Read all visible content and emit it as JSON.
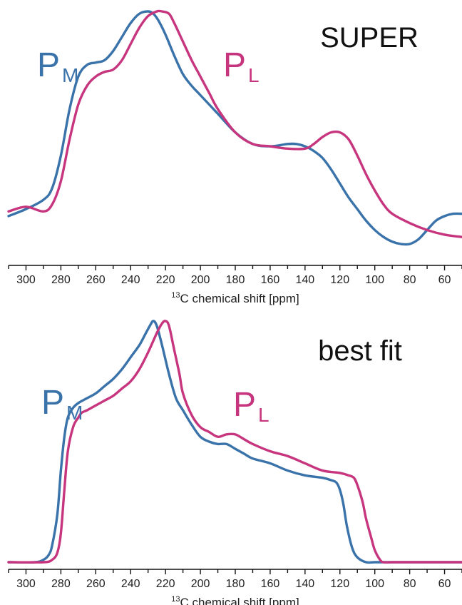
{
  "colors": {
    "pm": "#3a72aa",
    "pl": "#c6357e"
  },
  "chart_data": [
    {
      "type": "line",
      "annotation": "SUPER",
      "xlabel": {
        "sup": "13",
        "text": "C chemical shift [ppm]"
      },
      "xlim": [
        310,
        50
      ],
      "xticks": [
        300,
        280,
        260,
        240,
        220,
        200,
        180,
        160,
        140,
        120,
        100,
        80,
        60
      ],
      "ylim": [
        0,
        1
      ],
      "series": [
        {
          "label_main": "P",
          "label_sub": "M",
          "color": "#3a72aa",
          "x": [
            310,
            300,
            290,
            285,
            280,
            275,
            270,
            265,
            260,
            255,
            250,
            245,
            240,
            235,
            230,
            227,
            224,
            220,
            215,
            210,
            205,
            200,
            190,
            180,
            170,
            160,
            150,
            145,
            140,
            135,
            130,
            125,
            120,
            115,
            110,
            105,
            100,
            95,
            90,
            85,
            80,
            75,
            70,
            65,
            60,
            55,
            50
          ],
          "y": [
            0.12,
            0.15,
            0.19,
            0.24,
            0.38,
            0.58,
            0.72,
            0.77,
            0.78,
            0.79,
            0.83,
            0.89,
            0.95,
            0.99,
            1.0,
            0.99,
            0.96,
            0.9,
            0.81,
            0.73,
            0.68,
            0.64,
            0.56,
            0.48,
            0.43,
            0.42,
            0.43,
            0.43,
            0.42,
            0.4,
            0.37,
            0.32,
            0.26,
            0.2,
            0.15,
            0.1,
            0.06,
            0.03,
            0.01,
            0.0,
            0.0,
            0.02,
            0.06,
            0.1,
            0.12,
            0.13,
            0.13
          ]
        },
        {
          "label_main": "P",
          "label_sub": "L",
          "color": "#c6357e",
          "x": [
            310,
            300,
            290,
            285,
            280,
            275,
            270,
            265,
            260,
            255,
            250,
            245,
            240,
            235,
            230,
            225,
            222,
            218,
            215,
            210,
            205,
            200,
            195,
            190,
            180,
            170,
            160,
            150,
            140,
            135,
            130,
            125,
            120,
            115,
            110,
            105,
            100,
            95,
            90,
            80,
            70,
            60,
            50
          ],
          "y": [
            0.14,
            0.16,
            0.14,
            0.17,
            0.27,
            0.45,
            0.6,
            0.68,
            0.72,
            0.74,
            0.75,
            0.79,
            0.86,
            0.93,
            0.98,
            1.0,
            1.0,
            0.99,
            0.95,
            0.87,
            0.79,
            0.72,
            0.65,
            0.58,
            0.48,
            0.43,
            0.42,
            0.41,
            0.41,
            0.43,
            0.46,
            0.48,
            0.48,
            0.45,
            0.38,
            0.3,
            0.23,
            0.17,
            0.13,
            0.09,
            0.06,
            0.04,
            0.03
          ]
        }
      ]
    },
    {
      "type": "line",
      "annotation": "best fit",
      "xlabel": {
        "sup": "13",
        "text": "C chemical shift [ppm]"
      },
      "xlim": [
        310,
        50
      ],
      "xticks": [
        300,
        280,
        260,
        240,
        220,
        200,
        180,
        160,
        140,
        120,
        100,
        80,
        60
      ],
      "ylim": [
        0,
        1
      ],
      "series": [
        {
          "label_main": "P",
          "label_sub": "M",
          "color": "#3a72aa",
          "x": [
            310,
            295,
            290,
            287,
            285,
            282,
            280,
            278,
            276,
            273,
            270,
            265,
            260,
            255,
            250,
            245,
            240,
            235,
            232,
            229,
            227,
            225,
            222,
            218,
            214,
            210,
            205,
            200,
            195,
            190,
            185,
            180,
            175,
            170,
            160,
            150,
            140,
            130,
            125,
            122,
            120,
            118,
            116,
            113,
            110,
            105,
            100,
            90,
            80,
            50
          ],
          "y": [
            0.0,
            0.0,
            0.01,
            0.03,
            0.07,
            0.2,
            0.38,
            0.52,
            0.6,
            0.64,
            0.66,
            0.68,
            0.7,
            0.73,
            0.76,
            0.8,
            0.85,
            0.9,
            0.94,
            0.98,
            1.0,
            0.98,
            0.9,
            0.78,
            0.68,
            0.63,
            0.57,
            0.52,
            0.5,
            0.49,
            0.49,
            0.47,
            0.45,
            0.43,
            0.41,
            0.38,
            0.36,
            0.35,
            0.34,
            0.33,
            0.3,
            0.24,
            0.15,
            0.06,
            0.02,
            0.0,
            0.0,
            0.0,
            0.0,
            0.0
          ]
        },
        {
          "label_main": "P",
          "label_sub": "L",
          "color": "#c6357e",
          "x": [
            310,
            290,
            285,
            282,
            280,
            278,
            276,
            273,
            270,
            268,
            265,
            260,
            255,
            250,
            245,
            240,
            235,
            230,
            225,
            222,
            220,
            218,
            215,
            212,
            210,
            205,
            200,
            195,
            190,
            185,
            180,
            175,
            170,
            160,
            150,
            140,
            130,
            120,
            115,
            112,
            110,
            107,
            105,
            102,
            100,
            97,
            95,
            90,
            80,
            50
          ],
          "y": [
            0.0,
            0.0,
            0.01,
            0.04,
            0.12,
            0.3,
            0.46,
            0.56,
            0.6,
            0.62,
            0.63,
            0.65,
            0.67,
            0.69,
            0.72,
            0.75,
            0.8,
            0.87,
            0.95,
            0.99,
            1.0,
            0.98,
            0.88,
            0.78,
            0.7,
            0.61,
            0.56,
            0.54,
            0.52,
            0.53,
            0.53,
            0.51,
            0.49,
            0.46,
            0.44,
            0.41,
            0.38,
            0.37,
            0.36,
            0.35,
            0.32,
            0.25,
            0.18,
            0.1,
            0.05,
            0.01,
            0.0,
            0.0,
            0.0,
            0.0
          ]
        }
      ]
    }
  ]
}
